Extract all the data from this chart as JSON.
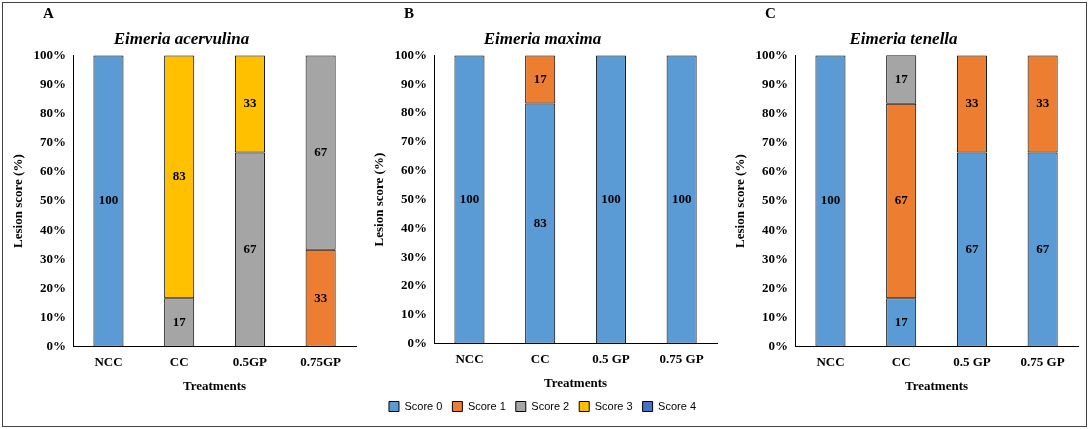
{
  "chart_data": [
    {
      "type": "bar",
      "title": "Eimeria acervulina",
      "annotations": [
        "A"
      ],
      "xlabel": "Treatments",
      "ylabel": "Lesion score (%)",
      "categories": [
        "NCC",
        "CC",
        "0.5GP",
        "0.75GP"
      ],
      "stacked": true,
      "legend": false,
      "ylim": [
        0,
        100
      ],
      "yticks": [
        {
          "value": 0,
          "label": "0%"
        },
        {
          "value": 10,
          "label": "10%"
        },
        {
          "value": 20,
          "label": "20%"
        },
        {
          "value": 30,
          "label": "30%"
        },
        {
          "value": 40,
          "label": "40%"
        },
        {
          "value": 50,
          "label": "50%"
        },
        {
          "value": 60,
          "label": "60%"
        },
        {
          "value": 70,
          "label": "70%"
        },
        {
          "value": 80,
          "label": "80%"
        },
        {
          "value": 90,
          "label": "90%"
        },
        {
          "value": 100,
          "label": "100%"
        }
      ],
      "series": [
        {
          "color": "#5b9bd5",
          "values": [
            100,
            null,
            null,
            null
          ],
          "value_labels": [
            "100",
            null,
            null,
            null
          ]
        },
        {
          "color": "#ed7d31",
          "values": [
            null,
            null,
            null,
            33.3
          ],
          "value_labels": [
            null,
            null,
            null,
            "33"
          ]
        },
        {
          "color": "#a5a5a5",
          "values": [
            null,
            16.7,
            66.7,
            66.7
          ],
          "value_labels": [
            null,
            "17",
            "67",
            "67"
          ]
        },
        {
          "color": "#ffc000",
          "values": [
            null,
            83.3,
            33.3,
            null
          ],
          "value_labels": [
            null,
            "83",
            "33",
            null
          ]
        }
      ]
    },
    {
      "type": "bar",
      "title": "Eimeria maxima",
      "annotations": [
        "B"
      ],
      "xlabel": "Treatments",
      "ylabel": "Lesion score (%)",
      "categories": [
        "NCC",
        "CC",
        "0.5 GP",
        "0.75 GP"
      ],
      "stacked": true,
      "legend": "bottom",
      "ylim": [
        0,
        100
      ],
      "yticks": [
        {
          "value": 0,
          "label": "0%"
        },
        {
          "value": 10,
          "label": "10%"
        },
        {
          "value": 20,
          "label": "20%"
        },
        {
          "value": 30,
          "label": "30%"
        },
        {
          "value": 40,
          "label": "40%"
        },
        {
          "value": 50,
          "label": "50%"
        },
        {
          "value": 60,
          "label": "60%"
        },
        {
          "value": 70,
          "label": "70%"
        },
        {
          "value": 80,
          "label": "80%"
        },
        {
          "value": 90,
          "label": "90%"
        },
        {
          "value": 100,
          "label": "100%"
        }
      ],
      "series": [
        {
          "name": "Score 0",
          "color": "#5b9bd5",
          "values": [
            100,
            83.3,
            100,
            100
          ],
          "value_labels": [
            "100",
            "83",
            "100",
            "100"
          ]
        },
        {
          "name": "Score 1",
          "color": "#ed7d31",
          "values": [
            null,
            16.7,
            null,
            null
          ],
          "value_labels": [
            null,
            "17",
            null,
            null
          ]
        },
        {
          "name": "Score 2",
          "color": "#a5a5a5",
          "values": [
            null,
            null,
            null,
            null
          ]
        },
        {
          "name": "Score 3",
          "color": "#ffc000",
          "values": [
            null,
            null,
            null,
            null
          ]
        },
        {
          "name": "Score 4",
          "color": "#4472c4",
          "values": [
            null,
            null,
            null,
            null
          ]
        }
      ]
    },
    {
      "type": "bar",
      "title": "Eimeria tenella",
      "annotations": [
        "C"
      ],
      "xlabel": "Treatments",
      "ylabel": "Lesion score (%)",
      "categories": [
        "NCC",
        "CC",
        "0.5 GP",
        "0.75 GP"
      ],
      "stacked": true,
      "legend": false,
      "ylim": [
        0,
        100
      ],
      "yticks": [
        {
          "value": 0,
          "label": "0%"
        },
        {
          "value": 10,
          "label": "10%"
        },
        {
          "value": 20,
          "label": "20%"
        },
        {
          "value": 30,
          "label": "30%"
        },
        {
          "value": 40,
          "label": "40%"
        },
        {
          "value": 50,
          "label": "50%"
        },
        {
          "value": 60,
          "label": "60%"
        },
        {
          "value": 70,
          "label": "70%"
        },
        {
          "value": 80,
          "label": "80%"
        },
        {
          "value": 90,
          "label": "90%"
        },
        {
          "value": 100,
          "label": "100%"
        }
      ],
      "series": [
        {
          "color": "#5b9bd5",
          "values": [
            100,
            16.7,
            66.7,
            66.7
          ],
          "value_labels": [
            "100",
            "17",
            "67",
            "67"
          ]
        },
        {
          "color": "#ed7d31",
          "values": [
            null,
            66.7,
            33.3,
            33.3
          ],
          "value_labels": [
            null,
            "67",
            "33",
            "33"
          ]
        },
        {
          "color": "#a5a5a5",
          "values": [
            null,
            16.7,
            null,
            null
          ],
          "value_labels": [
            null,
            "17",
            null,
            null
          ]
        }
      ]
    }
  ]
}
